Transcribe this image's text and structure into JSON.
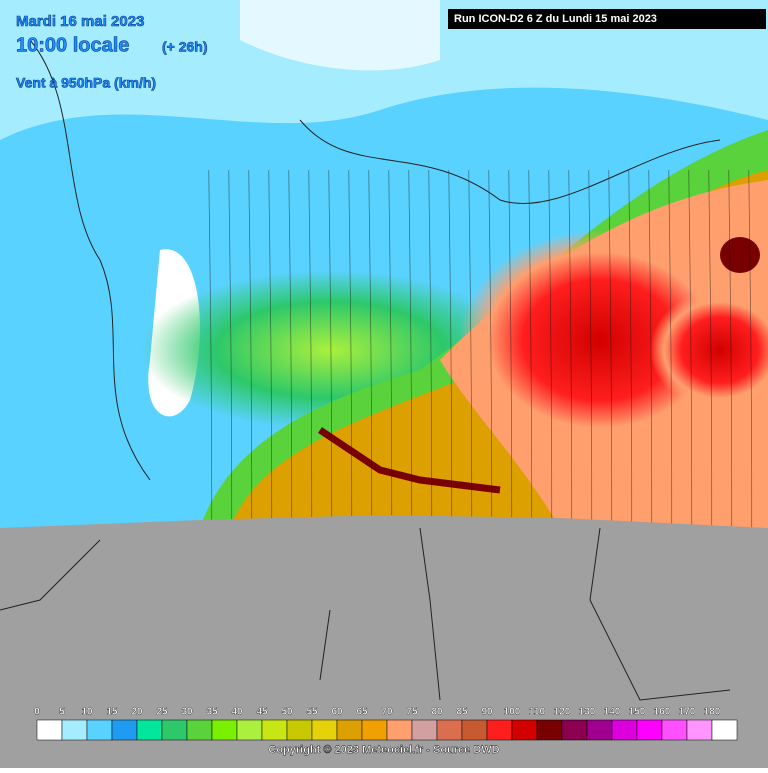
{
  "header": {
    "date": "Mardi 16 mai 2023",
    "time": "10:00 locale",
    "lead": "(+ 26h)",
    "field": "Vent à 950hPa (km/h)",
    "run": "Run ICON-D2 6 Z du Lundi 15 mai 2023"
  },
  "legend": {
    "ticks": [
      0,
      5,
      10,
      15,
      20,
      25,
      30,
      35,
      40,
      45,
      50,
      55,
      60,
      65,
      70,
      75,
      80,
      85,
      90,
      100,
      110,
      120,
      130,
      140,
      150,
      160,
      170,
      180
    ],
    "colors": [
      "#ffffff",
      "#a6ecff",
      "#5ad2ff",
      "#1e9cf0",
      "#00e69a",
      "#2dc86a",
      "#5ad23c",
      "#78f000",
      "#aaf03c",
      "#c8e614",
      "#c8c800",
      "#e6d20a",
      "#dca000",
      "#f0a000",
      "#ff9f6e",
      "#d2a0a0",
      "#dc6e50",
      "#c85a32",
      "#ff1e1e",
      "#d20000",
      "#780000",
      "#8c0050",
      "#a00090",
      "#dc00dc",
      "#ff00ff",
      "#ff50ff",
      "#ff96ff",
      "#ffffff"
    ]
  },
  "footer": {
    "copyright": "Copyright © 2023 Meteociel.fr - Source DWD"
  }
}
